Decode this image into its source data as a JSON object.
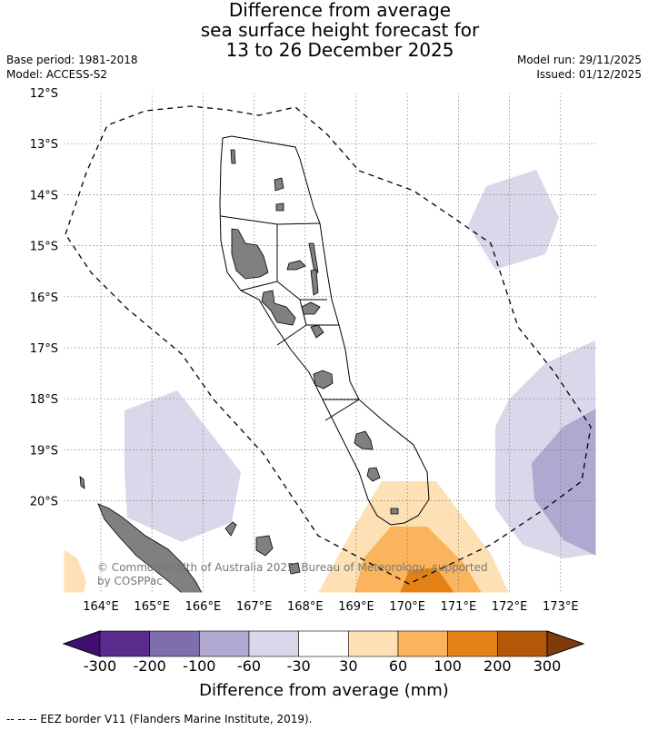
{
  "title": {
    "line1": "Difference from average",
    "line2": "sea surface height forecast for",
    "line3": "13 to 26 December 2025"
  },
  "meta": {
    "base_period": "Base period: 1981-2018",
    "model": "Model: ACCESS-S2",
    "model_run": "Model run: 29/11/2025",
    "issued": "Issued: 01/12/2025"
  },
  "map": {
    "lat_labels": [
      "12°S",
      "13°S",
      "14°S",
      "15°S",
      "16°S",
      "17°S",
      "18°S",
      "19°S",
      "20°S"
    ],
    "lon_labels": [
      "164°E",
      "165°E",
      "166°E",
      "167°E",
      "168°E",
      "169°E",
      "170°E",
      "171°E",
      "172°E",
      "173°E"
    ],
    "copyright_line1": "© Commonwealth of Australia 2025, Bureau of Meteorology, supported",
    "copyright_line2": "by COSPPac",
    "land_color": "#808080",
    "eez_line_color": "#000000"
  },
  "colorbar": {
    "ticks": [
      "-300",
      "-200",
      "-100",
      "-60",
      "-30",
      "30",
      "60",
      "100",
      "200",
      "300"
    ],
    "colors": [
      "#3f0f72",
      "#5a2a8c",
      "#7e6eab",
      "#b0a8d0",
      "#d8d8ea",
      "#ffffff",
      "#fde0b4",
      "#fbb45c",
      "#e38115",
      "#b35806",
      "#7f3b08"
    ],
    "label": "Difference from average (mm)"
  },
  "legend_note": "--  --  -- EEZ border V11 (Flanders Marine Institute, 2019)."
}
